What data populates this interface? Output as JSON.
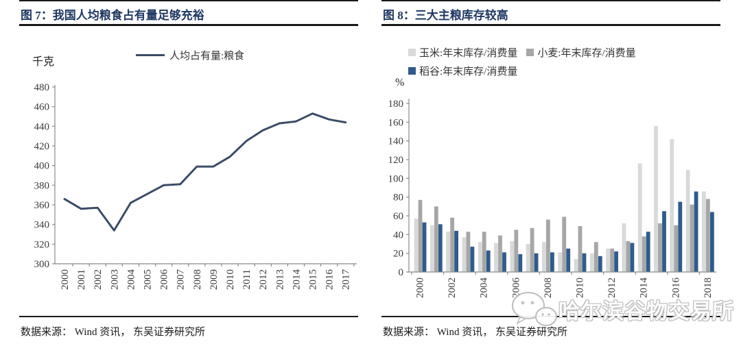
{
  "figures": [
    {
      "title": "图 7：我国人均粮食占有量足够充裕",
      "source": "数据来源： Wind 资讯， 东吴证券研究所",
      "chart_data": {
        "type": "line",
        "unit_label": "千克",
        "legend": "人均占有量:粮食",
        "color": "#3b4c66",
        "x": [
          2000,
          2001,
          2002,
          2003,
          2004,
          2005,
          2006,
          2007,
          2008,
          2009,
          2010,
          2011,
          2012,
          2013,
          2014,
          2015,
          2016,
          2017
        ],
        "values": [
          366,
          356,
          357,
          334,
          362,
          371,
          380,
          381,
          399,
          399,
          409,
          425,
          436,
          443,
          445,
          453,
          447,
          444
        ],
        "ylim": [
          300,
          480
        ],
        "ytick_step": 20,
        "grid": false,
        "legend_position": "top"
      }
    },
    {
      "title": "图 8：三大主粮库存较高",
      "source": "数据来源： Wind 资讯， 东吴证券研究所",
      "chart_data": {
        "type": "bar",
        "unit_label": "%",
        "categories": [
          2000,
          2001,
          2002,
          2003,
          2004,
          2005,
          2006,
          2007,
          2008,
          2009,
          2010,
          2011,
          2012,
          2013,
          2014,
          2015,
          2016,
          2017,
          2018
        ],
        "series": [
          {
            "name": "玉米:年末库存/消费量",
            "color": "#d9d9d9",
            "values": [
              57,
              50,
              43,
              37,
              32,
              31,
              33,
              30,
              32,
              21,
              14,
              20,
              25,
              52,
              116,
              156,
              142,
              109,
              86
            ]
          },
          {
            "name": "小麦:年末库存/消费量",
            "color": "#a6a6a6",
            "values": [
              77,
              70,
              58,
              43,
              43,
              39,
              45,
              47,
              56,
              59,
              49,
              32,
              25,
              33,
              38,
              52,
              50,
              72,
              78
            ]
          },
          {
            "name": "稻谷:年末库存/消费量",
            "color": "#2f5b8d",
            "values": [
              53,
              51,
              44,
              27,
              23,
              21,
              19,
              20,
              21,
              25,
              20,
              17,
              22,
              31,
              43,
              65,
              75,
              86,
              64
            ]
          }
        ],
        "ylim": [
          0,
          180
        ],
        "ytick_step": 20,
        "xtick_every": 2,
        "grid": false,
        "legend_position": "top"
      }
    }
  ],
  "watermark": {
    "text": "哈尔滨谷物交易所",
    "icon": "wechat-bubbles-icon"
  },
  "style_colors": {
    "title_navy": "#1f3864",
    "axis_gray": "#8a8a8a",
    "tick_text": "#3a3a3a",
    "rule_black": "#1a1a1a"
  }
}
